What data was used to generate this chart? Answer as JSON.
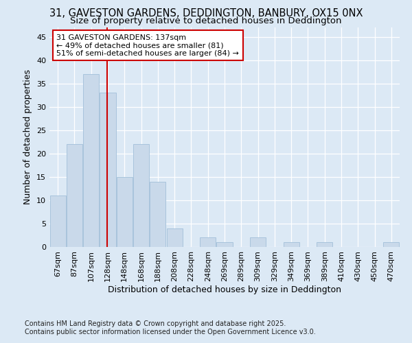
{
  "title_line1": "31, GAVESTON GARDENS, DEDDINGTON, BANBURY, OX15 0NX",
  "title_line2": "Size of property relative to detached houses in Deddington",
  "xlabel": "Distribution of detached houses by size in Deddington",
  "ylabel": "Number of detached properties",
  "categories": [
    "67sqm",
    "87sqm",
    "107sqm",
    "128sqm",
    "148sqm",
    "168sqm",
    "188sqm",
    "208sqm",
    "228sqm",
    "248sqm",
    "269sqm",
    "289sqm",
    "309sqm",
    "329sqm",
    "349sqm",
    "369sqm",
    "389sqm",
    "410sqm",
    "430sqm",
    "450sqm",
    "470sqm"
  ],
  "values": [
    11,
    22,
    37,
    33,
    15,
    22,
    14,
    4,
    0,
    2,
    1,
    0,
    2,
    0,
    1,
    0,
    1,
    0,
    0,
    0,
    1
  ],
  "bar_color": "#c9d9ea",
  "bar_edge_color": "#a8c4dc",
  "vline_x_index": 3,
  "vline_color": "#cc0000",
  "annotation_text": "31 GAVESTON GARDENS: 137sqm\n← 49% of detached houses are smaller (81)\n51% of semi-detached houses are larger (84) →",
  "annotation_box_facecolor": "#ffffff",
  "annotation_box_edgecolor": "#cc0000",
  "ylim": [
    0,
    47
  ],
  "yticks": [
    0,
    5,
    10,
    15,
    20,
    25,
    30,
    35,
    40,
    45
  ],
  "background_color": "#dce9f5",
  "plot_bg_color": "#dce9f5",
  "footer_line1": "Contains HM Land Registry data © Crown copyright and database right 2025.",
  "footer_line2": "Contains public sector information licensed under the Open Government Licence v3.0.",
  "title_fontsize": 10.5,
  "subtitle_fontsize": 9.5,
  "tick_fontsize": 8,
  "axis_label_fontsize": 9,
  "annotation_fontsize": 8,
  "footer_fontsize": 7,
  "grid_color": "#c8d8e8",
  "spine_color": "#a0b8cc"
}
